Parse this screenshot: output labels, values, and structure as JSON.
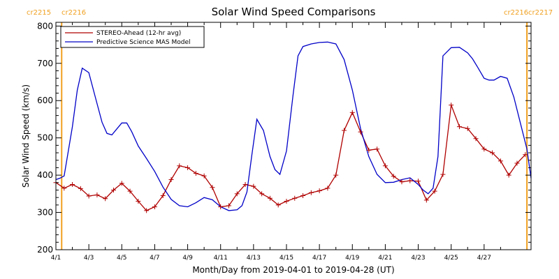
{
  "chart_data": {
    "type": "line",
    "title": "Solar Wind Speed Comparisons",
    "xlabel": "Month/Day from 2019-04-01 to 2019-04-28 (UT)",
    "ylabel": "Solar Wind Speed (km/s)",
    "xlim": [
      0,
      28.85
    ],
    "ylim": [
      200,
      810
    ],
    "yticks": [
      200,
      300,
      400,
      500,
      600,
      700,
      800
    ],
    "xticks": [
      {
        "day": 0,
        "label": "4/1"
      },
      {
        "day": 2,
        "label": "4/3"
      },
      {
        "day": 4,
        "label": "4/5"
      },
      {
        "day": 6,
        "label": "4/7"
      },
      {
        "day": 8,
        "label": "4/9"
      },
      {
        "day": 10,
        "label": "4/11"
      },
      {
        "day": 12,
        "label": "4/13"
      },
      {
        "day": 14,
        "label": "4/15"
      },
      {
        "day": 16,
        "label": "4/17"
      },
      {
        "day": 18,
        "label": "4/19"
      },
      {
        "day": 20,
        "label": "4/21"
      },
      {
        "day": 22,
        "label": "4/23"
      },
      {
        "day": 24,
        "label": "4/25"
      },
      {
        "day": 26,
        "label": "4/27"
      }
    ],
    "carrington_markers": [
      {
        "day": 0.35,
        "left_label": "cr2215",
        "right_label": "cr2216"
      },
      {
        "day": 28.6,
        "left_label": "cr2216",
        "right_label": "cr2217"
      }
    ],
    "legend_position": "top-left",
    "series": [
      {
        "name": "STEREO-Ahead (12-hr avg)",
        "color": "#b00000",
        "marker": "plus",
        "x": [
          0,
          0.5,
          1,
          1.5,
          2,
          2.5,
          3,
          3.5,
          4,
          4.5,
          5,
          5.5,
          6,
          6.5,
          7,
          7.5,
          8,
          8.5,
          9,
          9.5,
          10,
          10.5,
          11,
          11.5,
          12,
          12.5,
          13,
          13.5,
          14,
          14.5,
          15,
          15.5,
          16,
          16.5,
          17,
          17.5,
          18,
          18.5,
          19,
          19.5,
          20,
          20.5,
          21,
          21.5,
          22,
          22.5,
          23,
          23.5,
          24,
          24.5,
          25,
          25.5,
          26,
          26.5,
          27,
          27.5,
          28,
          28.5
        ],
        "y": [
          380,
          365,
          375,
          364,
          344,
          347,
          337,
          360,
          378,
          357,
          330,
          305,
          315,
          345,
          388,
          425,
          420,
          405,
          398,
          367,
          315,
          318,
          350,
          375,
          370,
          350,
          338,
          320,
          330,
          338,
          345,
          353,
          358,
          365,
          400,
          520,
          568,
          516,
          467,
          470,
          425,
          397,
          382,
          385,
          384,
          333,
          357,
          402,
          588,
          530,
          525,
          498,
          470,
          460,
          438,
          400,
          432,
          455
        ]
      },
      {
        "name": "Predictive Science MAS Model",
        "color": "#0000c8",
        "x": [
          0,
          0.25,
          0.5,
          1,
          1.3,
          1.6,
          2,
          2.4,
          2.8,
          3.1,
          3.4,
          3.7,
          4,
          4.3,
          4.6,
          5,
          5.5,
          6,
          6.5,
          7,
          7.5,
          8,
          8.5,
          9,
          9.5,
          10,
          10.5,
          11,
          11.3,
          11.6,
          11.9,
          12.2,
          12.6,
          13,
          13.3,
          13.6,
          14,
          14.4,
          14.7,
          15,
          15.5,
          16,
          16.5,
          17,
          17.5,
          18,
          18.5,
          19,
          19.5,
          20,
          20.5,
          21,
          21.5,
          22,
          22.3,
          22.6,
          22.9,
          23.2,
          23.5,
          24,
          24.5,
          25,
          25.3,
          25.6,
          26,
          26.3,
          26.6,
          27,
          27.4,
          27.8,
          28.2,
          28.6,
          28.85
        ],
        "y": [
          388,
          392,
          398,
          530,
          628,
          687,
          675,
          608,
          542,
          512,
          508,
          524,
          540,
          540,
          517,
          478,
          445,
          410,
          368,
          335,
          318,
          315,
          326,
          340,
          334,
          315,
          305,
          307,
          318,
          355,
          455,
          550,
          520,
          450,
          415,
          402,
          465,
          615,
          720,
          745,
          752,
          756,
          757,
          752,
          710,
          628,
          525,
          450,
          402,
          380,
          381,
          388,
          393,
          375,
          360,
          350,
          365,
          450,
          720,
          742,
          743,
          728,
          712,
          690,
          660,
          655,
          655,
          665,
          660,
          610,
          540,
          470,
          392
        ]
      }
    ]
  }
}
